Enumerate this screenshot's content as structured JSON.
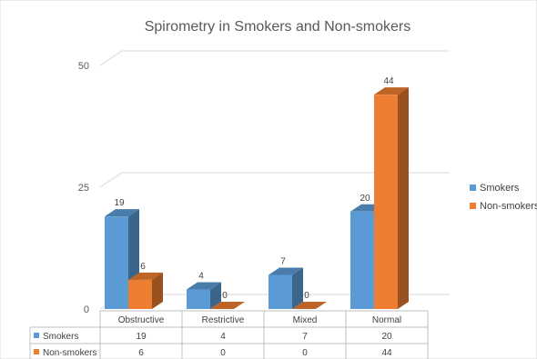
{
  "chart_data": {
    "type": "bar",
    "title": "Spirometry in Smokers and Non-smokers",
    "categories": [
      "Obstructive",
      "Restrictive",
      "Mixed",
      "Normal"
    ],
    "series": [
      {
        "name": "Smokers",
        "values": [
          19,
          4,
          7,
          20
        ],
        "color": "#5b9bd5"
      },
      {
        "name": "Non-smokers",
        "values": [
          6,
          0,
          0,
          44
        ],
        "color": "#ed7d31"
      }
    ],
    "yticks": [
      0,
      25,
      50
    ],
    "ylim": [
      0,
      50
    ],
    "grid": true,
    "legend_position": "right",
    "data_table": true
  }
}
